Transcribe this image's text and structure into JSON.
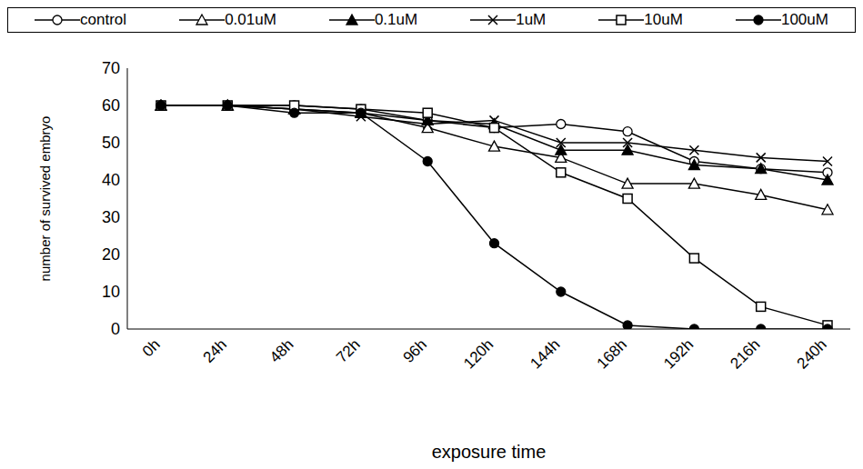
{
  "chart_data": {
    "type": "line",
    "x_label": "exposure time",
    "y_label": "number of survived embryo",
    "categories": [
      "0h",
      "24h",
      "48h",
      "72h",
      "96h",
      "120h",
      "144h",
      "168h",
      "192h",
      "216h",
      "240h"
    ],
    "ylim": [
      0,
      70
    ],
    "yticks": [
      0,
      10,
      20,
      30,
      40,
      50,
      60,
      70
    ],
    "grid": false,
    "legend": "top",
    "series": [
      {
        "name": "control",
        "color": "#000000",
        "marker": "circle-open",
        "values": [
          60,
          60,
          60,
          59,
          56,
          54,
          55,
          53,
          45,
          43,
          42
        ]
      },
      {
        "name": "0.01uM",
        "color": "#000000",
        "marker": "triangle-open",
        "values": [
          60,
          60,
          59,
          58,
          54,
          49,
          46,
          39,
          39,
          36,
          32
        ]
      },
      {
        "name": "0.1uM",
        "color": "#000000",
        "marker": "triangle-filled",
        "values": [
          60,
          60,
          59,
          58,
          56,
          55,
          48,
          48,
          44,
          43,
          40
        ]
      },
      {
        "name": "1uM",
        "color": "#000000",
        "marker": "x",
        "values": [
          60,
          60,
          59,
          57,
          55,
          56,
          50,
          50,
          48,
          46,
          45
        ]
      },
      {
        "name": "10uM",
        "color": "#000000",
        "marker": "square-open",
        "values": [
          60,
          60,
          60,
          59,
          58,
          54,
          42,
          35,
          19,
          6,
          1
        ]
      },
      {
        "name": "100uM",
        "color": "#000000",
        "marker": "circle-filled",
        "values": [
          60,
          60,
          58,
          58,
          45,
          23,
          10,
          1,
          0,
          0,
          0
        ]
      }
    ]
  }
}
